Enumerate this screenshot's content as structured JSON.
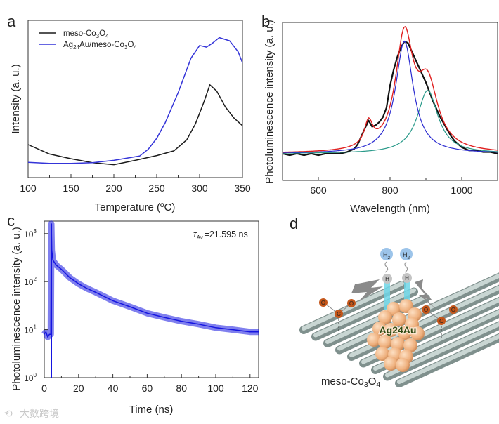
{
  "panels": {
    "a": "a",
    "b": "b",
    "c": "c",
    "d": "d"
  },
  "watermark": "大数跨境",
  "chart_data": [
    {
      "id": "a",
      "type": "line",
      "xlabel": "Temperature (ºC)",
      "ylabel": "Intensity (a. u.)",
      "xlim": [
        100,
        350
      ],
      "ylim": [
        0,
        1
      ],
      "xticks": [
        100,
        150,
        200,
        250,
        300,
        350
      ],
      "legend_position": "top-left",
      "series": [
        {
          "name": "meso-Co3O4",
          "color": "#1a1a1a",
          "x": [
            100,
            125,
            150,
            175,
            200,
            225,
            250,
            270,
            285,
            295,
            305,
            312,
            320,
            330,
            340,
            350
          ],
          "y": [
            0.21,
            0.15,
            0.12,
            0.095,
            0.082,
            0.11,
            0.14,
            0.17,
            0.24,
            0.34,
            0.48,
            0.59,
            0.55,
            0.45,
            0.38,
            0.33
          ]
        },
        {
          "name": "Ag24Au/meso-Co3O4",
          "color": "#3434d8",
          "x": [
            100,
            125,
            150,
            175,
            200,
            230,
            240,
            250,
            260,
            275,
            290,
            300,
            308,
            315,
            323,
            335,
            345,
            350
          ],
          "y": [
            0.097,
            0.09,
            0.09,
            0.095,
            0.11,
            0.137,
            0.18,
            0.25,
            0.35,
            0.54,
            0.76,
            0.84,
            0.83,
            0.855,
            0.89,
            0.87,
            0.8,
            0.73
          ]
        }
      ]
    },
    {
      "id": "b",
      "type": "line",
      "xlabel": "Wavelength (nm)",
      "ylabel": "Photoluminescence intensity (a. u.)",
      "xlim": [
        500,
        1100
      ],
      "ylim": [
        0,
        1
      ],
      "xticks": [
        600,
        800,
        1000
      ],
      "experimental": {
        "name": "PL spectrum",
        "color": "#111111",
        "x": [
          500,
          520,
          540,
          560,
          580,
          600,
          620,
          640,
          660,
          680,
          700,
          710,
          720,
          730,
          740,
          750,
          760,
          770,
          780,
          790,
          800,
          810,
          820,
          830,
          840,
          850,
          860,
          870,
          880,
          890,
          900,
          910,
          920,
          930,
          940,
          950,
          960,
          970,
          980,
          990,
          1000,
          1020,
          1040,
          1060,
          1080,
          1100
        ],
        "y": [
          0.17,
          0.16,
          0.17,
          0.16,
          0.17,
          0.16,
          0.17,
          0.17,
          0.17,
          0.18,
          0.2,
          0.23,
          0.28,
          0.33,
          0.38,
          0.34,
          0.35,
          0.37,
          0.4,
          0.46,
          0.6,
          0.7,
          0.78,
          0.84,
          0.88,
          0.87,
          0.82,
          0.77,
          0.72,
          0.67,
          0.62,
          0.56,
          0.5,
          0.45,
          0.4,
          0.36,
          0.32,
          0.28,
          0.25,
          0.23,
          0.21,
          0.19,
          0.19,
          0.18,
          0.18,
          0.17
        ]
      },
      "baseline": 0.17,
      "fit_peaks": [
        {
          "name": "peak-740",
          "center": 740,
          "height": 0.15,
          "hwhm": 14
        },
        {
          "name": "peak-840",
          "center": 840,
          "height": 0.71,
          "hwhm": 30,
          "color": "#2a2ad0"
        },
        {
          "name": "peak-905",
          "center": 905,
          "height": 0.4,
          "hwhm": 35,
          "color": "#2a9a8a"
        }
      ],
      "fit_sum_color": "#e02020"
    },
    {
      "id": "c",
      "type": "line",
      "xlabel": "Time (ns)",
      "ylabel": "Photoluminescence intensity (a. u.)",
      "xlim": [
        0,
        125
      ],
      "ylim": [
        1,
        1820
      ],
      "yscale": "log",
      "xticks": [
        0,
        20,
        40,
        60,
        80,
        100,
        120
      ],
      "yticks": [
        {
          "base": "10",
          "exp": "0"
        },
        {
          "base": "10",
          "exp": "1"
        },
        {
          "base": "10",
          "exp": "2"
        },
        {
          "base": "10",
          "exp": "3"
        }
      ],
      "annotation": {
        "symbol": "τ",
        "sub": "Av.",
        "value": "=21.595 ns"
      },
      "series": [
        {
          "name": "PL decay",
          "color": "#1515e0",
          "x": [
            0,
            1,
            2,
            3,
            3.8,
            4.1,
            4.4,
            5,
            7,
            10,
            15,
            20,
            25,
            30,
            40,
            50,
            60,
            70,
            80,
            90,
            100,
            110,
            120,
            125
          ],
          "y": [
            8,
            9,
            7,
            8,
            8,
            1600,
            450,
            280,
            220,
            180,
            120,
            90,
            72,
            60,
            40,
            30,
            22,
            18,
            15,
            13,
            11,
            10,
            9,
            9
          ]
        }
      ]
    }
  ],
  "schematic": {
    "h2": "H2",
    "h": "H",
    "o": "O",
    "c": "C",
    "cluster": "Ag24Au",
    "support": "meso-Co3O4"
  }
}
